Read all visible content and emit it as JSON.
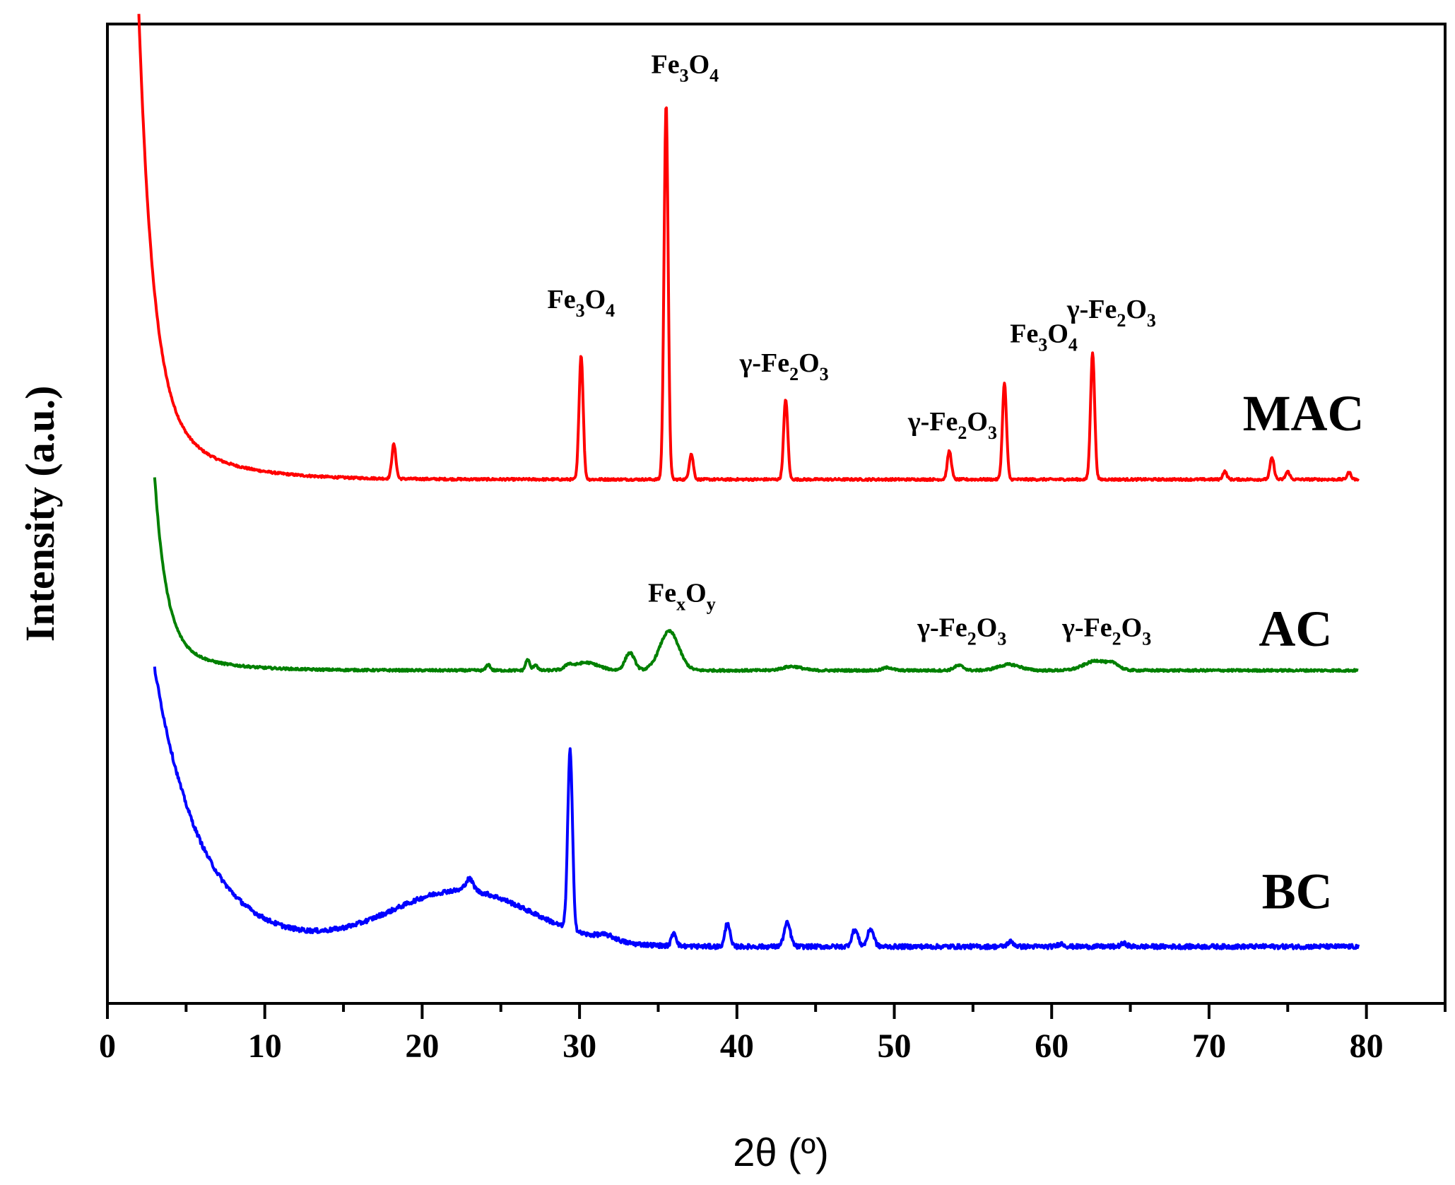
{
  "chart_data": {
    "type": "line",
    "title": "",
    "xlabel": "2θ (º)",
    "ylabel": "Intensity (a.u.)",
    "xlim": [
      0,
      85
    ],
    "ylim": [
      0,
      1
    ],
    "x_ticks": [
      0,
      10,
      20,
      30,
      40,
      50,
      60,
      70,
      80
    ],
    "x_tick_labels": [
      "0",
      "10",
      "20",
      "30",
      "40",
      "50",
      "60",
      "70",
      "80"
    ],
    "y_ticks_shown": false,
    "grid": false,
    "series": [
      {
        "name": "MAC",
        "label": "MAC",
        "color": "#ff0000",
        "x_range": [
          2,
          79.5
        ],
        "baseline": 0.535,
        "background": {
          "amplitude": 0.395,
          "center": 2.0,
          "decay": 0.9,
          "secondary_amplitude": 0.08,
          "secondary_decay": 3.5
        },
        "peaks": [
          {
            "x": 18.2,
            "height": 0.035,
            "width": 0.13
          },
          {
            "x": 30.1,
            "height": 0.127,
            "width": 0.13
          },
          {
            "x": 35.5,
            "height": 0.384,
            "width": 0.13
          },
          {
            "x": 37.1,
            "height": 0.026,
            "width": 0.13
          },
          {
            "x": 43.1,
            "height": 0.082,
            "width": 0.13
          },
          {
            "x": 53.5,
            "height": 0.029,
            "width": 0.13
          },
          {
            "x": 57.0,
            "height": 0.098,
            "width": 0.13
          },
          {
            "x": 62.6,
            "height": 0.13,
            "width": 0.13
          },
          {
            "x": 71.0,
            "height": 0.008,
            "width": 0.13
          },
          {
            "x": 74.0,
            "height": 0.022,
            "width": 0.13
          },
          {
            "x": 75.0,
            "height": 0.008,
            "width": 0.13
          },
          {
            "x": 78.9,
            "height": 0.007,
            "width": 0.13
          }
        ]
      },
      {
        "name": "AC",
        "label": "AC",
        "color": "#008000",
        "x_range": [
          3,
          79.5
        ],
        "baseline": 0.34,
        "background": {
          "amplitude": 0.17,
          "center": 3.0,
          "decay": 0.75,
          "secondary_amplitude": 0.028,
          "secondary_decay": 3.0
        },
        "peaks": [
          {
            "x": 24.2,
            "height": 0.006,
            "width": 0.13
          },
          {
            "x": 26.7,
            "height": 0.011,
            "width": 0.13
          },
          {
            "x": 27.2,
            "height": 0.006,
            "width": 0.13
          },
          {
            "x": 29.3,
            "height": 0.004,
            "width": 0.2
          },
          {
            "x": 30.4,
            "height": 0.008,
            "width": 0.8
          },
          {
            "x": 33.2,
            "height": 0.018,
            "width": 0.3
          },
          {
            "x": 35.7,
            "height": 0.04,
            "width": 0.6
          },
          {
            "x": 43.5,
            "height": 0.004,
            "width": 0.6
          },
          {
            "x": 49.6,
            "height": 0.003,
            "width": 0.3
          },
          {
            "x": 54.1,
            "height": 0.005,
            "width": 0.3
          },
          {
            "x": 57.3,
            "height": 0.006,
            "width": 0.7
          },
          {
            "x": 62.9,
            "height": 0.01,
            "width": 0.8
          },
          {
            "x": 64.0,
            "height": 0.004,
            "width": 0.3
          }
        ]
      },
      {
        "name": "BC",
        "label": "BC",
        "color": "#0000ff",
        "x_range": [
          3,
          79.5
        ],
        "baseline": 0.058,
        "background": {
          "amplitude": 0.14,
          "center": 3.0,
          "decay": 3.0,
          "secondary_amplitude": 0.144,
          "secondary_decay": 3.0
        },
        "hump": {
          "x": 22.5,
          "height": 0.057,
          "width": 4.5
        },
        "peaks": [
          {
            "x": 23.0,
            "height": 0.012,
            "width": 0.25
          },
          {
            "x": 29.4,
            "height": 0.183,
            "width": 0.15
          },
          {
            "x": 31.7,
            "height": 0.005,
            "width": 0.6
          },
          {
            "x": 36.0,
            "height": 0.014,
            "width": 0.15
          },
          {
            "x": 39.4,
            "height": 0.025,
            "width": 0.15
          },
          {
            "x": 43.2,
            "height": 0.024,
            "width": 0.2
          },
          {
            "x": 47.5,
            "height": 0.017,
            "width": 0.2
          },
          {
            "x": 48.5,
            "height": 0.018,
            "width": 0.2
          },
          {
            "x": 57.4,
            "height": 0.005,
            "width": 0.2
          },
          {
            "x": 60.6,
            "height": 0.003,
            "width": 0.2
          },
          {
            "x": 64.6,
            "height": 0.003,
            "width": 0.2
          }
        ]
      }
    ],
    "annotations": [
      {
        "series": "MAC",
        "x": 30.1,
        "y": 0.71,
        "base": "Fe",
        "sub1": "3",
        "mid": "O",
        "sub2": "4"
      },
      {
        "series": "MAC",
        "x": 36.7,
        "y": 0.95,
        "base": "Fe",
        "sub1": "3",
        "mid": "O",
        "sub2": "4"
      },
      {
        "series": "MAC",
        "x": 43.0,
        "y": 0.645,
        "base": "γ-Fe",
        "sub1": "2",
        "mid": "O",
        "sub2": "3"
      },
      {
        "series": "MAC",
        "x": 53.7,
        "y": 0.585,
        "base": "γ-Fe",
        "sub1": "2",
        "mid": "O",
        "sub2": "3"
      },
      {
        "series": "MAC",
        "x": 59.5,
        "y": 0.675,
        "base": "Fe",
        "sub1": "3",
        "mid": "O",
        "sub2": "4"
      },
      {
        "series": "MAC",
        "x": 63.8,
        "y": 0.7,
        "base": "γ-Fe",
        "sub1": "2",
        "mid": "O",
        "sub2": "3"
      },
      {
        "series": "AC",
        "x": 36.5,
        "y": 0.41,
        "base": "Fe",
        "sub1": "x",
        "mid": "O",
        "sub2": "y"
      },
      {
        "series": "AC",
        "x": 54.3,
        "y": 0.375,
        "base": "γ-Fe",
        "sub1": "2",
        "mid": "O",
        "sub2": "3"
      },
      {
        "series": "AC",
        "x": 63.5,
        "y": 0.375,
        "base": "γ-Fe",
        "sub1": "2",
        "mid": "O",
        "sub2": "3"
      }
    ],
    "series_labels": [
      {
        "text": "MAC",
        "x": 76.0,
        "y": 0.585
      },
      {
        "text": "AC",
        "x": 75.5,
        "y": 0.365
      },
      {
        "text": "BC",
        "x": 75.6,
        "y": 0.097
      }
    ]
  }
}
